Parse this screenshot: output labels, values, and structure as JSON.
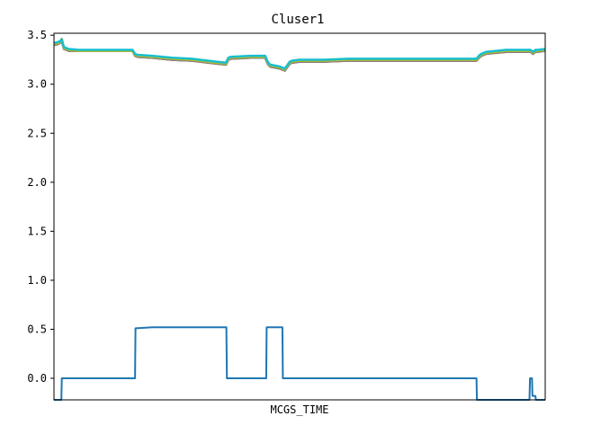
{
  "chart_data": {
    "type": "line",
    "title": "Cluser1",
    "xlabel": "MCGS_TIME",
    "ylabel": "",
    "x_ticks_shown": false,
    "x": [
      0,
      0.8,
      1.2,
      1.6,
      2,
      3,
      5,
      8,
      10,
      12,
      15,
      16,
      16.5,
      17,
      20,
      24,
      28,
      33,
      35,
      35.5,
      36,
      40,
      43,
      43.5,
      44,
      46,
      47,
      48,
      48.5,
      50,
      55,
      60,
      70,
      80,
      86,
      86.5,
      87,
      88,
      90,
      92,
      95,
      97,
      97.5,
      98,
      98.5,
      100
    ],
    "ylim": [
      -0.22,
      3.52
    ],
    "yticks": [
      "3.5",
      "3.0",
      "2.5",
      "2.0",
      "1.5",
      "1.0",
      "0.5",
      "0.0"
    ],
    "yticks_values": [
      3.5,
      3.0,
      2.5,
      2.0,
      1.5,
      1.0,
      0.5,
      0.0
    ],
    "series": [
      {
        "color": "#2ca02c",
        "values": [
          3.41,
          3.42,
          3.43,
          3.46,
          3.38,
          3.35,
          3.34,
          3.34,
          3.34,
          3.34,
          3.34,
          3.34,
          3.3,
          3.29,
          3.28,
          3.26,
          3.25,
          3.22,
          3.21,
          3.26,
          3.27,
          3.28,
          3.28,
          3.22,
          3.19,
          3.17,
          3.15,
          3.22,
          3.23,
          3.24,
          3.24,
          3.25,
          3.25,
          3.25,
          3.25,
          3.28,
          3.3,
          3.32,
          3.33,
          3.34,
          3.34,
          3.34,
          3.32,
          3.34,
          3.34,
          3.35
        ]
      },
      {
        "color": "#d62728",
        "values": [
          3.4,
          3.41,
          3.42,
          3.45,
          3.37,
          3.34,
          3.34,
          3.34,
          3.34,
          3.34,
          3.34,
          3.34,
          3.29,
          3.28,
          3.27,
          3.25,
          3.24,
          3.21,
          3.2,
          3.25,
          3.26,
          3.27,
          3.27,
          3.21,
          3.18,
          3.16,
          3.14,
          3.21,
          3.22,
          3.23,
          3.23,
          3.24,
          3.24,
          3.24,
          3.24,
          3.27,
          3.29,
          3.31,
          3.32,
          3.33,
          3.33,
          3.33,
          3.31,
          3.33,
          3.34,
          3.34
        ]
      },
      {
        "color": "#9467bd",
        "values": [
          3.41,
          3.42,
          3.43,
          3.44,
          3.37,
          3.35,
          3.34,
          3.34,
          3.34,
          3.34,
          3.34,
          3.34,
          3.3,
          3.28,
          3.27,
          3.25,
          3.24,
          3.22,
          3.2,
          3.25,
          3.27,
          3.27,
          3.27,
          3.21,
          3.18,
          3.16,
          3.14,
          3.21,
          3.22,
          3.23,
          3.24,
          3.24,
          3.24,
          3.24,
          3.24,
          3.27,
          3.29,
          3.31,
          3.33,
          3.33,
          3.33,
          3.33,
          3.31,
          3.33,
          3.34,
          3.34
        ]
      },
      {
        "color": "#7f7f7f",
        "values": [
          3.4,
          3.41,
          3.42,
          3.44,
          3.36,
          3.34,
          3.34,
          3.34,
          3.34,
          3.34,
          3.34,
          3.34,
          3.29,
          3.28,
          3.27,
          3.25,
          3.24,
          3.21,
          3.2,
          3.25,
          3.26,
          3.27,
          3.27,
          3.21,
          3.18,
          3.16,
          3.14,
          3.21,
          3.22,
          3.23,
          3.23,
          3.24,
          3.24,
          3.24,
          3.24,
          3.27,
          3.29,
          3.31,
          3.32,
          3.33,
          3.33,
          3.33,
          3.31,
          3.33,
          3.33,
          3.34
        ]
      },
      {
        "color": "#bcbd22",
        "values": [
          3.41,
          3.42,
          3.43,
          3.45,
          3.37,
          3.35,
          3.34,
          3.34,
          3.34,
          3.34,
          3.34,
          3.34,
          3.3,
          3.29,
          3.28,
          3.26,
          3.25,
          3.22,
          3.21,
          3.26,
          3.27,
          3.28,
          3.28,
          3.22,
          3.19,
          3.17,
          3.15,
          3.22,
          3.23,
          3.24,
          3.24,
          3.25,
          3.25,
          3.25,
          3.25,
          3.28,
          3.3,
          3.32,
          3.33,
          3.34,
          3.34,
          3.34,
          3.32,
          3.34,
          3.34,
          3.35
        ]
      },
      {
        "color": "#17becf",
        "values": [
          3.42,
          3.43,
          3.44,
          3.45,
          3.38,
          3.36,
          3.35,
          3.35,
          3.35,
          3.35,
          3.35,
          3.35,
          3.31,
          3.3,
          3.29,
          3.27,
          3.26,
          3.23,
          3.22,
          3.27,
          3.28,
          3.29,
          3.29,
          3.23,
          3.2,
          3.18,
          3.16,
          3.23,
          3.24,
          3.25,
          3.25,
          3.26,
          3.26,
          3.26,
          3.26,
          3.29,
          3.31,
          3.33,
          3.34,
          3.35,
          3.35,
          3.35,
          3.33,
          3.35,
          3.35,
          3.36
        ]
      },
      {
        "color": "#1f77b4",
        "points": [
          [
            0,
            -0.25
          ],
          [
            1.5,
            -0.25
          ],
          [
            1.6,
            0.0
          ],
          [
            16.5,
            0.0
          ],
          [
            16.6,
            0.51
          ],
          [
            20,
            0.52
          ],
          [
            28,
            0.52
          ],
          [
            35.1,
            0.52
          ],
          [
            35.2,
            0.0
          ],
          [
            43.2,
            0.0
          ],
          [
            43.3,
            0.52
          ],
          [
            46.5,
            0.52
          ],
          [
            46.6,
            0.0
          ],
          [
            86.0,
            0.0
          ],
          [
            86.1,
            -0.25
          ],
          [
            96.8,
            -0.25
          ],
          [
            96.9,
            0.0
          ],
          [
            97.3,
            0.0
          ],
          [
            97.4,
            -0.18
          ],
          [
            98.0,
            -0.18
          ],
          [
            98.1,
            -0.25
          ],
          [
            100,
            -0.25
          ]
        ]
      }
    ]
  }
}
